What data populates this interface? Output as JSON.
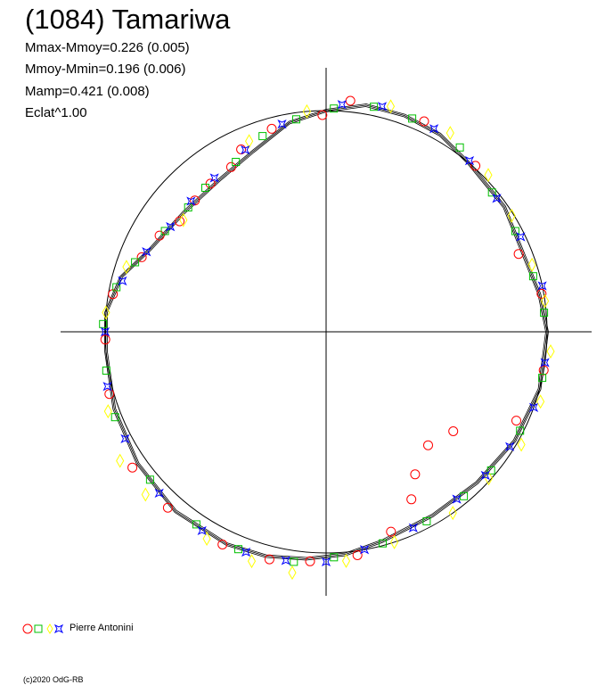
{
  "header": {
    "title": "(1084) Tamariwa",
    "mmax": "Mmax-Mmoy=0.226 (0.005)",
    "mmin": "Mmoy-Mmin=0.196 (0.006)",
    "mamp": "Mamp=0.421 (0.008)",
    "eclat": "Eclat^1.00"
  },
  "legend": {
    "observer": "Pierre Antonini"
  },
  "footer": {
    "copyright": "(c)2020 OdG-RB"
  },
  "colors": {
    "series_circle": "#ff0000",
    "series_square": "#00c000",
    "series_diamond": "#ffff00",
    "series_star": "#0000ff",
    "axes": "#000000"
  },
  "chart_data": {
    "type": "scatter",
    "projection": "polar lightcurve",
    "reference_circle_radius": 1.0,
    "fit_curve_polar": [
      [
        0,
        1.0
      ],
      [
        10,
        0.98
      ],
      [
        20,
        0.96
      ],
      [
        35,
        0.985
      ],
      [
        50,
        1.0
      ],
      [
        60,
        1.03
      ],
      [
        70,
        1.04
      ],
      [
        80,
        1.04
      ],
      [
        90,
        1.0
      ],
      [
        100,
        0.96
      ],
      [
        112,
        0.88
      ],
      [
        125,
        0.84
      ],
      [
        140,
        0.84
      ],
      [
        155,
        0.88
      ],
      [
        165,
        0.96
      ],
      [
        175,
        1.0
      ],
      [
        185,
        1.0
      ],
      [
        200,
        1.02
      ],
      [
        215,
        1.04
      ],
      [
        230,
        1.06
      ],
      [
        245,
        1.06
      ],
      [
        255,
        1.05
      ],
      [
        265,
        1.03
      ],
      [
        275,
        1.01
      ],
      [
        285,
        0.98
      ],
      [
        300,
        0.96
      ],
      [
        315,
        0.965
      ],
      [
        330,
        0.985
      ],
      [
        345,
        1.0
      ],
      [
        360,
        1.0
      ]
    ],
    "series": [
      {
        "marker": "circle",
        "points": [
          [
            10,
            0.99
          ],
          [
            22,
            0.94
          ],
          [
            48,
            1.01
          ],
          [
            65,
            1.05
          ],
          [
            84,
            1.05
          ],
          [
            91,
            0.98
          ],
          [
            105,
            0.95
          ],
          [
            115,
            0.91
          ],
          [
            120,
            0.86
          ],
          [
            128,
            0.85
          ],
          [
            135,
            0.84
          ],
          [
            143,
            0.83
          ],
          [
            150,
            0.87
          ],
          [
            158,
            0.9
          ],
          [
            170,
            0.98
          ],
          [
            182,
            1.0
          ],
          [
            196,
            1.02
          ],
          [
            215,
            1.07
          ],
          [
            228,
            1.07
          ],
          [
            244,
            1.07
          ],
          [
            256,
            1.06
          ],
          [
            266,
            1.04
          ],
          [
            278,
            1.02
          ],
          [
            288,
            0.95
          ],
          [
            297,
            0.85
          ],
          [
            302,
            0.76
          ],
          [
            312,
            0.69
          ],
          [
            322,
            0.73
          ],
          [
            335,
            0.95
          ],
          [
            350,
            1.0
          ]
        ]
      },
      {
        "marker": "square",
        "points": [
          [
            5,
            0.99
          ],
          [
            15,
            0.97
          ],
          [
            28,
            0.97
          ],
          [
            40,
            0.98
          ],
          [
            54,
            1.03
          ],
          [
            68,
            1.04
          ],
          [
            78,
            1.04
          ],
          [
            88,
            1.01
          ],
          [
            98,
            0.97
          ],
          [
            108,
            0.93
          ],
          [
            118,
            0.87
          ],
          [
            130,
            0.85
          ],
          [
            138,
            0.84
          ],
          [
            148,
            0.86
          ],
          [
            160,
            0.92
          ],
          [
            168,
            0.97
          ],
          [
            178,
            1.01
          ],
          [
            190,
            1.01
          ],
          [
            202,
            1.03
          ],
          [
            220,
            1.04
          ],
          [
            236,
            1.05
          ],
          [
            248,
            1.06
          ],
          [
            262,
            1.05
          ],
          [
            272,
            1.02
          ],
          [
            285,
            0.99
          ],
          [
            298,
            0.97
          ],
          [
            310,
            0.97
          ],
          [
            320,
            0.975
          ],
          [
            333,
            0.985
          ],
          [
            348,
            1.0
          ]
        ]
      },
      {
        "marker": "diamond",
        "points": [
          [
            8,
            1.0
          ],
          [
            18,
            0.98
          ],
          [
            32,
            0.99
          ],
          [
            44,
            1.02
          ],
          [
            58,
            1.06
          ],
          [
            74,
            1.06
          ],
          [
            95,
            1.0
          ],
          [
            112,
            0.93
          ],
          [
            142,
            0.82
          ],
          [
            162,
            0.95
          ],
          [
            175,
            1.0
          ],
          [
            200,
            1.05
          ],
          [
            212,
            1.1
          ],
          [
            222,
            1.1
          ],
          [
            240,
            1.08
          ],
          [
            252,
            1.09
          ],
          [
            262,
            1.1
          ],
          [
            275,
            1.04
          ],
          [
            288,
            1.0
          ],
          [
            305,
            1.0
          ],
          [
            318,
            0.99
          ],
          [
            330,
            1.02
          ],
          [
            342,
            1.02
          ],
          [
            355,
            1.02
          ]
        ]
      },
      {
        "marker": "star",
        "points": [
          [
            12,
            1.0
          ],
          [
            26,
            0.98
          ],
          [
            38,
            0.98
          ],
          [
            50,
            1.01
          ],
          [
            62,
            1.04
          ],
          [
            76,
            1.05
          ],
          [
            86,
            1.03
          ],
          [
            102,
            0.96
          ],
          [
            114,
            0.9
          ],
          [
            126,
            0.86
          ],
          [
            136,
            0.85
          ],
          [
            146,
            0.85
          ],
          [
            156,
            0.89
          ],
          [
            166,
            0.95
          ],
          [
            180,
            1.0
          ],
          [
            194,
            1.02
          ],
          [
            208,
            1.03
          ],
          [
            224,
            1.05
          ],
          [
            238,
            1.06
          ],
          [
            250,
            1.06
          ],
          [
            260,
            1.05
          ],
          [
            270,
            1.04
          ],
          [
            280,
            1.0
          ],
          [
            294,
            0.97
          ],
          [
            308,
            0.96
          ],
          [
            318,
            0.97
          ],
          [
            328,
            0.98
          ],
          [
            340,
            1.0
          ],
          [
            352,
            1.0
          ]
        ]
      }
    ]
  }
}
